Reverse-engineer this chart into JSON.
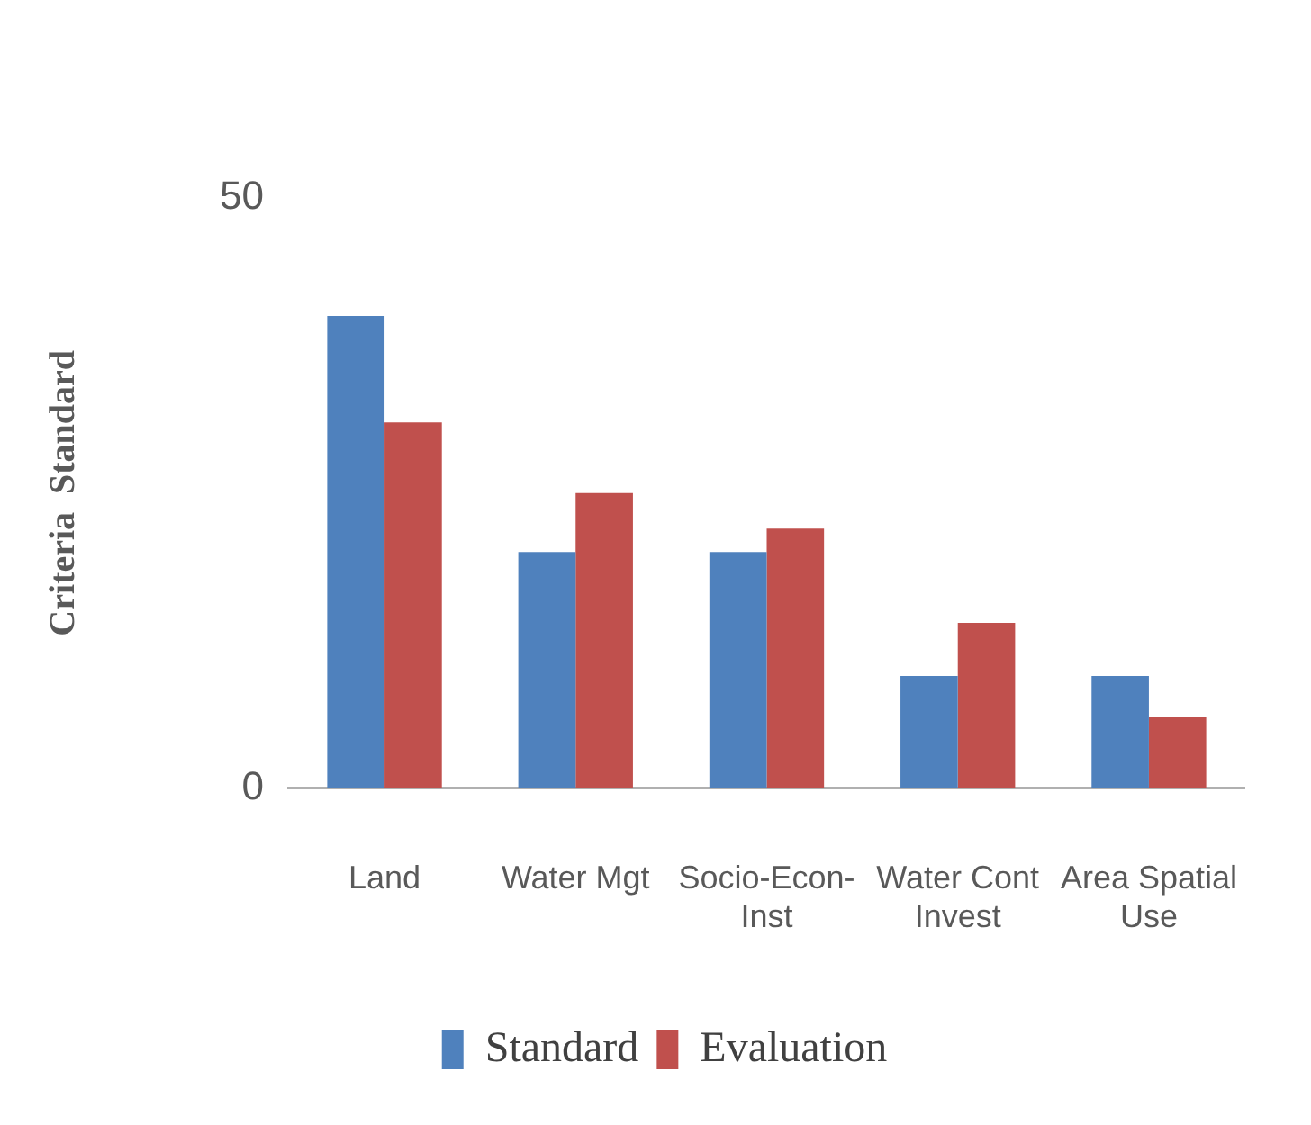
{
  "chart_data": {
    "type": "bar",
    "ylabel": "Criteria  Standard",
    "categories": [
      "Land",
      "Water Mgt",
      "Socio-Econ-Inst",
      "Water Cont Invest",
      "Area Spatial Use"
    ],
    "series": [
      {
        "name": "Standard",
        "color": "#4f81bd",
        "values": [
          40,
          20,
          20,
          9.5,
          9.5
        ]
      },
      {
        "name": "Evaluation",
        "color": "#c0504d",
        "values": [
          31,
          25,
          22,
          14,
          6
        ]
      }
    ],
    "ylim": [
      0,
      50
    ],
    "yticks": [
      0,
      50
    ],
    "legend": "bottom"
  }
}
